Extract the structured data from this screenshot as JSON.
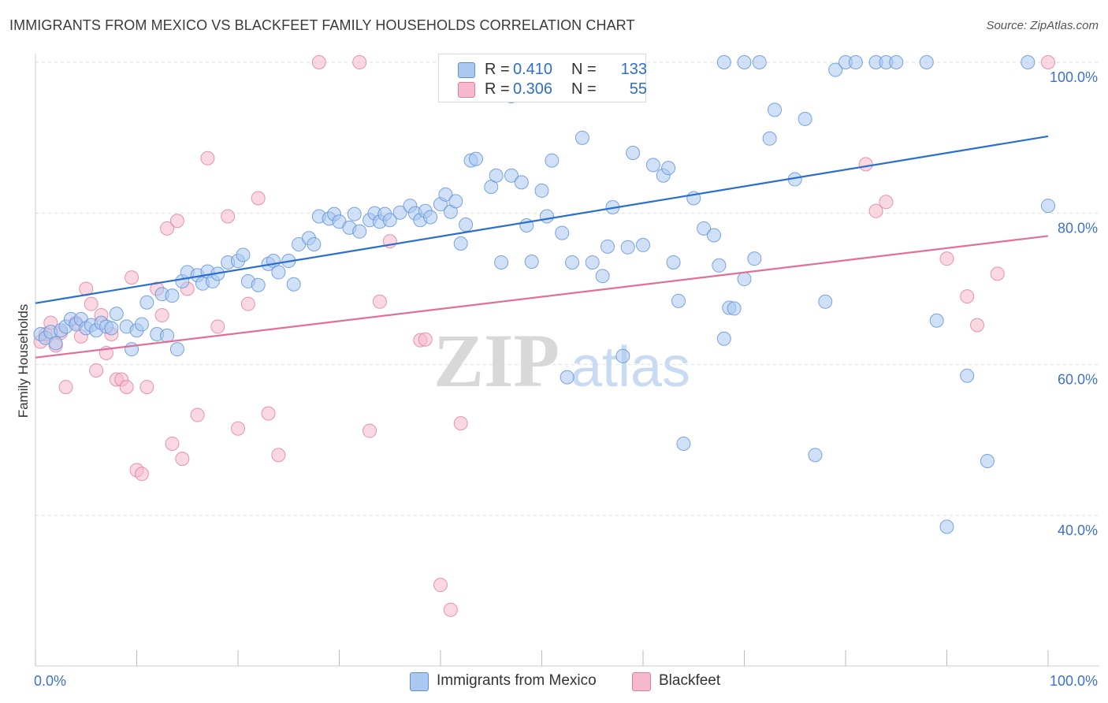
{
  "header": {
    "title": "IMMIGRANTS FROM MEXICO VS BLACKFEET FAMILY HOUSEHOLDS CORRELATION CHART",
    "source": "Source: ZipAtlas.com"
  },
  "watermark": {
    "zip": "ZIP",
    "atlas": "atlas"
  },
  "colors": {
    "blue_fill": "#aac8f0",
    "blue_stroke": "#5b8fd8",
    "blue_line": "#2a6fce",
    "pink_fill": "#f6b8cb",
    "pink_stroke": "#e07ca0",
    "pink_line": "#e06f9a",
    "axis_text": "#3d72c8",
    "grid": "#dddddd"
  },
  "stats": {
    "rows": [
      {
        "r_label": "R =",
        "r_value": "0.410",
        "n_label": "N =",
        "n_value": "133",
        "color": "blue"
      },
      {
        "r_label": "R =",
        "r_value": "0.306",
        "n_label": "N =",
        "n_value": "55",
        "color": "pink"
      }
    ]
  },
  "legend": {
    "items": [
      {
        "label": "Immigrants from Mexico",
        "color": "blue"
      },
      {
        "label": "Blackfeet",
        "color": "pink"
      }
    ]
  },
  "chart_data": {
    "type": "scatter",
    "title": "IMMIGRANTS FROM MEXICO VS BLACKFEET FAMILY HOUSEHOLDS CORRELATION CHART",
    "xlabel": "",
    "ylabel": "Family Households",
    "xlim": [
      0,
      100
    ],
    "ylim": [
      19,
      100
    ],
    "x_tick_labels": [
      {
        "value": 0,
        "label": "0.0%"
      },
      {
        "value": 100,
        "label": "100.0%"
      }
    ],
    "x_minor_ticks": [
      0,
      10,
      20,
      30,
      40,
      50,
      60,
      70,
      80,
      90,
      100
    ],
    "y_ticks": [
      {
        "value": 100,
        "label": "100.0%"
      },
      {
        "value": 80,
        "label": "80.0%"
      },
      {
        "value": 60,
        "label": "60.0%"
      },
      {
        "value": 40,
        "label": "40.0%"
      }
    ],
    "grid": true,
    "legend_position": "bottom",
    "series": [
      {
        "name": "Immigrants from Mexico",
        "color": "blue",
        "trend": {
          "x": [
            0,
            100
          ],
          "y": [
            68.1,
            90.2
          ]
        },
        "points": [
          [
            0.5,
            64
          ],
          [
            1,
            63.5
          ],
          [
            1.5,
            64.3
          ],
          [
            2,
            62.8
          ],
          [
            2.5,
            64.5
          ],
          [
            3,
            65
          ],
          [
            3.5,
            66
          ],
          [
            4,
            65.3
          ],
          [
            4.5,
            66
          ],
          [
            5,
            64.8
          ],
          [
            5.5,
            65.2
          ],
          [
            6,
            64.5
          ],
          [
            6.5,
            65.5
          ],
          [
            7,
            65
          ],
          [
            7.5,
            64.8
          ],
          [
            8,
            66.7
          ],
          [
            9,
            65
          ],
          [
            9.5,
            62
          ],
          [
            10,
            64.5
          ],
          [
            10.5,
            65.3
          ],
          [
            11,
            68.2
          ],
          [
            12,
            64
          ],
          [
            13,
            63.8
          ],
          [
            14,
            62
          ],
          [
            12.5,
            69.3
          ],
          [
            13.5,
            69.1
          ],
          [
            14.5,
            71
          ],
          [
            15,
            72.2
          ],
          [
            16,
            71.8
          ],
          [
            16.5,
            70.7
          ],
          [
            17,
            72.3
          ],
          [
            17.5,
            71
          ],
          [
            18,
            72
          ],
          [
            19,
            73.5
          ],
          [
            20,
            73.7
          ],
          [
            20.5,
            74.5
          ],
          [
            21,
            71
          ],
          [
            22,
            70.5
          ],
          [
            23,
            73.3
          ],
          [
            23.5,
            73.7
          ],
          [
            24,
            72.2
          ],
          [
            25,
            73.7
          ],
          [
            25.5,
            70.6
          ],
          [
            26,
            75.9
          ],
          [
            27,
            76.7
          ],
          [
            27.5,
            75.9
          ],
          [
            28,
            79.6
          ],
          [
            29,
            79.3
          ],
          [
            29.5,
            79.9
          ],
          [
            30,
            78.9
          ],
          [
            31,
            78.1
          ],
          [
            31.5,
            79.9
          ],
          [
            32,
            77.6
          ],
          [
            33,
            79.1
          ],
          [
            33.5,
            80
          ],
          [
            34,
            78.9
          ],
          [
            34.5,
            79.9
          ],
          [
            35,
            79.1
          ],
          [
            36,
            80.1
          ],
          [
            37,
            81
          ],
          [
            37.5,
            80
          ],
          [
            38,
            79.1
          ],
          [
            38.5,
            80.3
          ],
          [
            39,
            79.5
          ],
          [
            40,
            81.2
          ],
          [
            40.5,
            82.5
          ],
          [
            41,
            80.2
          ],
          [
            41.5,
            81.6
          ],
          [
            42,
            76
          ],
          [
            42.5,
            78.5
          ],
          [
            43,
            87
          ],
          [
            43.5,
            87.2
          ],
          [
            45,
            83.5
          ],
          [
            45.5,
            85
          ],
          [
            46,
            73.5
          ],
          [
            47,
            85
          ],
          [
            48,
            84.1
          ],
          [
            48.5,
            78.4
          ],
          [
            49,
            73.6
          ],
          [
            50,
            83
          ],
          [
            50.5,
            79.6
          ],
          [
            51,
            87
          ],
          [
            52,
            77.4
          ],
          [
            52.5,
            58.3
          ],
          [
            53,
            73.5
          ],
          [
            54,
            90
          ],
          [
            55,
            73.5
          ],
          [
            56,
            71.7
          ],
          [
            56.5,
            75.6
          ],
          [
            57,
            80.8
          ],
          [
            58,
            61.1
          ],
          [
            58.5,
            75.5
          ],
          [
            59,
            88
          ],
          [
            60,
            75.8
          ],
          [
            61,
            86.4
          ],
          [
            62,
            85
          ],
          [
            62.5,
            86
          ],
          [
            63,
            73.5
          ],
          [
            63.5,
            68.4
          ],
          [
            64,
            49.5
          ],
          [
            65,
            82
          ],
          [
            66,
            78
          ],
          [
            67,
            77.1
          ],
          [
            67.5,
            73.1
          ],
          [
            68,
            63.4
          ],
          [
            68.5,
            67.5
          ],
          [
            69,
            67.4
          ],
          [
            70,
            71.3
          ],
          [
            71,
            74
          ],
          [
            72.5,
            89.9
          ],
          [
            73,
            93.7
          ],
          [
            75,
            84.5
          ],
          [
            76,
            92.5
          ],
          [
            77,
            48
          ],
          [
            78,
            68.3
          ],
          [
            79,
            99
          ],
          [
            80,
            100
          ],
          [
            81,
            100
          ],
          [
            83,
            100
          ],
          [
            84,
            100
          ],
          [
            85,
            100
          ],
          [
            88,
            100
          ],
          [
            68,
            100
          ],
          [
            70,
            100
          ],
          [
            71.5,
            100
          ],
          [
            47,
            95.5
          ],
          [
            47.5,
            100
          ],
          [
            89,
            65.8
          ],
          [
            90,
            38.5
          ],
          [
            92,
            58.5
          ],
          [
            94,
            47.2
          ],
          [
            98,
            100
          ],
          [
            100,
            81
          ]
        ]
      },
      {
        "name": "Blackfeet",
        "color": "pink",
        "trend": {
          "x": [
            0,
            100
          ],
          "y": [
            60.9,
            77.0
          ]
        },
        "points": [
          [
            0.5,
            63
          ],
          [
            1,
            64
          ],
          [
            1.5,
            65.5
          ],
          [
            2,
            62.5
          ],
          [
            2.5,
            64.2
          ],
          [
            3,
            57
          ],
          [
            4,
            65.5
          ],
          [
            4.5,
            63.7
          ],
          [
            5,
            70
          ],
          [
            5.5,
            68
          ],
          [
            6,
            59.2
          ],
          [
            6.5,
            66.5
          ],
          [
            7,
            61.5
          ],
          [
            7.5,
            64
          ],
          [
            8,
            58
          ],
          [
            8.5,
            58
          ],
          [
            9,
            57
          ],
          [
            9.5,
            71.5
          ],
          [
            10,
            46
          ],
          [
            10.5,
            45.5
          ],
          [
            11,
            57
          ],
          [
            12,
            70
          ],
          [
            12.5,
            66.5
          ],
          [
            13,
            78
          ],
          [
            13.5,
            49.5
          ],
          [
            14,
            79
          ],
          [
            14.5,
            47.5
          ],
          [
            15,
            70
          ],
          [
            16,
            53.3
          ],
          [
            17,
            87.3
          ],
          [
            18,
            65
          ],
          [
            19,
            79.6
          ],
          [
            20,
            51.5
          ],
          [
            21,
            68
          ],
          [
            22,
            82
          ],
          [
            23,
            53.5
          ],
          [
            24,
            48
          ],
          [
            28,
            100
          ],
          [
            32,
            100
          ],
          [
            33,
            51.2
          ],
          [
            34,
            68.3
          ],
          [
            35,
            76.3
          ],
          [
            38,
            63.2
          ],
          [
            38.5,
            63.3
          ],
          [
            40,
            30.8
          ],
          [
            41,
            27.5
          ],
          [
            42,
            52.2
          ],
          [
            82,
            86.5
          ],
          [
            83,
            80.3
          ],
          [
            84,
            81.5
          ],
          [
            90,
            74
          ],
          [
            92,
            69
          ],
          [
            93,
            65.2
          ],
          [
            95,
            72
          ],
          [
            100,
            100
          ]
        ]
      }
    ]
  }
}
